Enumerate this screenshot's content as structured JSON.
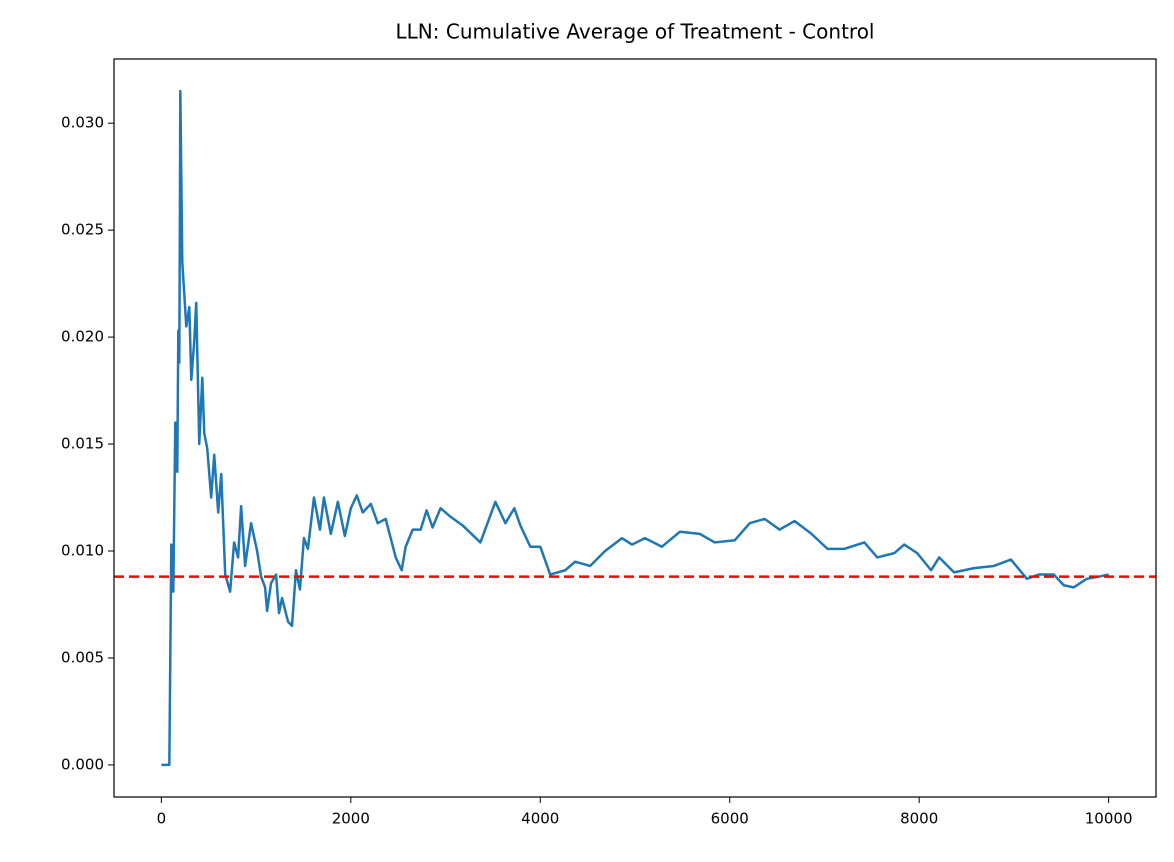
{
  "chart_data": {
    "type": "line",
    "title": "LLN: Cumulative Average of Treatment - Control",
    "x": [
      0,
      84,
      105,
      126,
      147,
      168,
      179,
      189,
      195,
      200,
      221,
      263,
      295,
      316,
      347,
      368,
      400,
      432,
      453,
      484,
      526,
      558,
      600,
      632,
      674,
      726,
      768,
      810,
      842,
      884,
      947,
      1011,
      1053,
      1095,
      1116,
      1158,
      1211,
      1242,
      1274,
      1337,
      1379,
      1421,
      1463,
      1505,
      1547,
      1611,
      1674,
      1716,
      1789,
      1863,
      1937,
      2000,
      2063,
      2126,
      2211,
      2284,
      2368,
      2474,
      2537,
      2579,
      2653,
      2737,
      2800,
      2863,
      2947,
      3053,
      3179,
      3368,
      3526,
      3632,
      3726,
      3789,
      3895,
      4000,
      4105,
      4263,
      4368,
      4526,
      4684,
      4863,
      4968,
      5105,
      5284,
      5474,
      5684,
      5842,
      6053,
      6211,
      6368,
      6526,
      6684,
      6863,
      7032,
      7211,
      7421,
      7558,
      7737,
      7842,
      7979,
      8126,
      8211,
      8368,
      8579,
      8789,
      8968,
      9137,
      9263,
      9421,
      9526,
      9632,
      9768,
      9895,
      10000
    ],
    "series": [
      {
        "color": "#1f77b4",
        "values": [
          0,
          0,
          0.0103,
          0.0081,
          0.016,
          0.0137,
          0.0203,
          0.0188,
          0.0248,
          0.0315,
          0.0235,
          0.0205,
          0.0214,
          0.018,
          0.0198,
          0.0216,
          0.015,
          0.0181,
          0.0155,
          0.0148,
          0.0125,
          0.0145,
          0.0118,
          0.0136,
          0.0089,
          0.0081,
          0.0104,
          0.0097,
          0.0121,
          0.0093,
          0.0113,
          0.01,
          0.0088,
          0.0083,
          0.0072,
          0.0085,
          0.0089,
          0.0071,
          0.0078,
          0.0067,
          0.0065,
          0.0091,
          0.0082,
          0.0106,
          0.0101,
          0.0125,
          0.011,
          0.0125,
          0.0108,
          0.0123,
          0.0107,
          0.012,
          0.0126,
          0.0118,
          0.0122,
          0.0113,
          0.0115,
          0.0097,
          0.0091,
          0.0102,
          0.011,
          0.011,
          0.0119,
          0.0111,
          0.012,
          0.0116,
          0.0112,
          0.0104,
          0.0123,
          0.0113,
          0.012,
          0.0112,
          0.0102,
          0.0102,
          0.0089,
          0.0091,
          0.0095,
          0.0093,
          0.01,
          0.0106,
          0.0103,
          0.0106,
          0.0102,
          0.0109,
          0.0108,
          0.0104,
          0.0105,
          0.0113,
          0.0115,
          0.011,
          0.0114,
          0.0108,
          0.0101,
          0.0101,
          0.0104,
          0.0097,
          0.0099,
          0.0103,
          0.0099,
          0.0091,
          0.0097,
          0.009,
          0.0092,
          0.0093,
          0.0096,
          0.0087,
          0.0089,
          0.0089,
          0.0084,
          0.0083,
          0.0087,
          0.0088,
          0.0089
        ]
      }
    ],
    "reference_line": {
      "value": 0.0088,
      "color": "#ff0000",
      "style": "dashed"
    },
    "xlim": [
      -500,
      10500
    ],
    "xticks": [
      0,
      2000,
      4000,
      6000,
      8000,
      10000
    ],
    "ylim": [
      -0.0015,
      0.033
    ],
    "yticks": [
      {
        "value": 0,
        "label": "0.000"
      },
      {
        "value": 0.005,
        "label": "0.005"
      },
      {
        "value": 0.01,
        "label": "0.010"
      },
      {
        "value": 0.015,
        "label": "0.015"
      },
      {
        "value": 0.02,
        "label": "0.020"
      },
      {
        "value": 0.025,
        "label": "0.025"
      },
      {
        "value": 0.03,
        "label": "0.030"
      }
    ]
  }
}
